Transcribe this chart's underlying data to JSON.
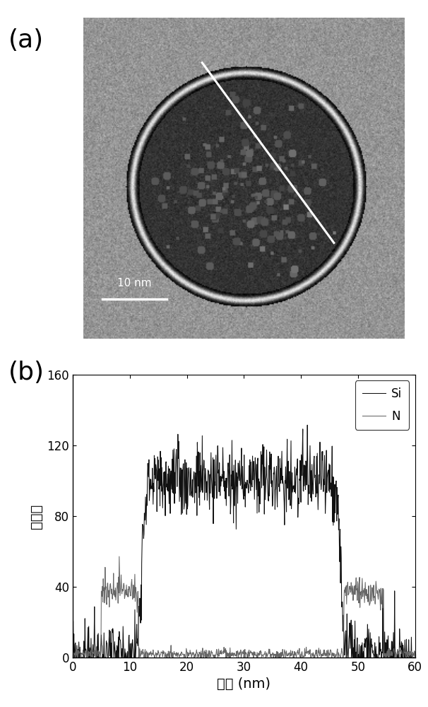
{
  "panel_a_label": "(a)",
  "panel_b_label": "(b)",
  "scalebar_text": "10 nm",
  "legend_Si": "Si",
  "legend_N": "N",
  "ylabel": "计数率",
  "xlabel": "长度 (nm)",
  "ylim": [
    0,
    160
  ],
  "xlim": [
    0,
    60
  ],
  "yticks": [
    0,
    40,
    80,
    120,
    160
  ],
  "xticks": [
    0,
    10,
    20,
    30,
    40,
    50,
    60
  ],
  "Si_color": "#111111",
  "N_color": "#666666",
  "bg_color": "#ffffff",
  "img_bg_gray": 0.58,
  "img_bg_noise": 0.055,
  "shell_brightness": 0.88,
  "shell_noise": 0.04,
  "interior_gray": 0.2,
  "interior_noise": 0.035,
  "meso_gray": 0.35,
  "meso_noise": 0.05
}
